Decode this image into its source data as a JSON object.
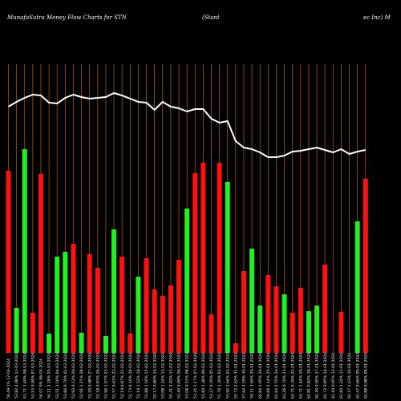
{
  "chart_data": {
    "type": "bar",
    "title": "MunafaSutra  Money Flow  Charts for STN",
    "subtitle": "(Stant",
    "subtitle_tail": "ec Inc) M",
    "ylim": [
      0,
      440
    ],
    "grid": true,
    "colors": {
      "background": "#000000",
      "up": "#22ee22",
      "down": "#ff1111",
      "grid": "#b8620a",
      "line": "#ffffff",
      "text": "#ffffff"
    },
    "categories": [
      "56.49 1% 12-03-2024",
      "53.82 4.08% 11-03-2024",
      "51.71 3.40% 08-03-2024",
      "53.53 0.99% 07-03-2024",
      "54.07 0% 06-03-2024",
      "54.11 2.18% 05-03-2024",
      "53.51 1.50% 04-03-2024",
      "53.86 0.70% 01-03-2024",
      "52.93 0.12% 29-02-2024",
      "52.91 1.15% 28-02-2024",
      "52.29 0.98% 27-02-2024",
      "52.18 0.83% 26-02-2024",
      "51.96 1.97% 23-02-2024",
      "51.57 0.61% 22-02-2024",
      "52.19 0.87% 21-02-2024",
      "51.73 0.10% 20-02-2024",
      "52.19 1.52% 16-02-2024",
      "51.88 1.50% 15-02-2024",
      "52.17 0.80% 14-02-2024",
      "53.08 1.24% 13-02-2024",
      "54.41 2.92% 12-02-2024",
      "52.40 0.89% 09-02-2024",
      "53.08 0.51% 08-02-2024",
      "53.35 1.17% 07-02-2024",
      "52.60 1.38% 06-02-2024",
      "53.27 0.20% 05-02-2024",
      "51.76 1.36% 02-02-2024",
      "53.95 2.64% 01-02-2024",
      "55.72 2.62% 31-01-2024",
      "57.64 2.59% 30-01-2024",
      "59.11 3.04% 29-01-2024",
      "60.84 1.95% 26-01-2024",
      "59.66 3.14% 25-01-2024",
      "61.64 2.55% 24-01-2024",
      "63.26 0.76% 23-01-2024",
      "63.71 0.39% 22-01-2024",
      "63.71 1.44% 19-01-2024",
      "62.81 0.82% 18-01-2024",
      "62.30 0.95% 17-01-2024",
      "61.72 0.85% 16-01-2024",
      "61.20 0.65% 12-01-2024",
      "61.60 1.24% 11-01-2024",
      "62.37 1.43% 10-01-2024",
      "61.47 0.66% 09-01-2024",
      "61.88 0.98% 08-01-2024"
    ],
    "values": [
      227,
      56,
      254,
      50,
      223,
      24,
      120,
      126,
      136,
      25,
      123,
      106,
      21,
      154,
      120,
      24,
      95,
      118,
      79,
      71,
      84,
      116,
      180,
      224,
      237,
      48,
      237,
      213,
      12,
      102,
      130,
      59,
      97,
      83,
      73,
      50,
      81,
      52,
      59,
      110,
      0,
      51,
      0,
      164,
      217
    ],
    "directions": [
      "down",
      "up",
      "up",
      "down",
      "down",
      "up",
      "up",
      "up",
      "down",
      "up",
      "down",
      "down",
      "up",
      "up",
      "down",
      "down",
      "up",
      "down",
      "down",
      "down",
      "down",
      "down",
      "up",
      "down",
      "down",
      "down",
      "down",
      "up",
      "down",
      "down",
      "up",
      "up",
      "down",
      "down",
      "up",
      "down",
      "down",
      "up",
      "up",
      "down",
      "down",
      "down",
      "down",
      "up",
      "down"
    ],
    "line": [
      307,
      313,
      318,
      322,
      321,
      312,
      311,
      318,
      322,
      319,
      317,
      318,
      319,
      324,
      321,
      317,
      313,
      312,
      303,
      313,
      307,
      305,
      301,
      304,
      304,
      292,
      287,
      289,
      264,
      256,
      254,
      250,
      244,
      244,
      246,
      251,
      252,
      254,
      256,
      253,
      250,
      254,
      248,
      251,
      253
    ]
  }
}
